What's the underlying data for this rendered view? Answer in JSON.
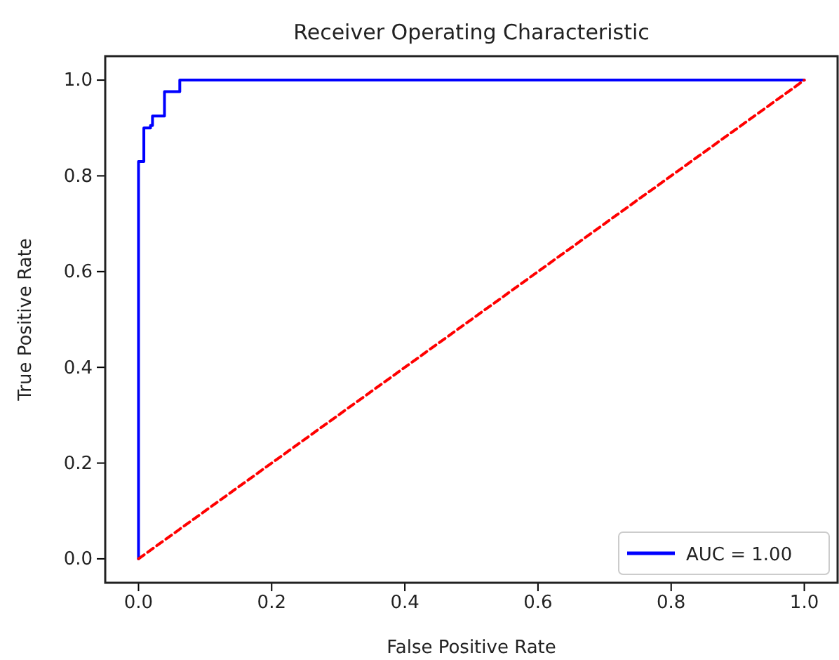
{
  "chart_data": {
    "type": "line",
    "title": "Receiver Operating Characteristic",
    "xlabel": "False Positive Rate",
    "ylabel": "True Positive Rate",
    "xlim": [
      -0.05,
      1.05
    ],
    "ylim": [
      -0.05,
      1.05
    ],
    "xticks": [
      {
        "value": 0,
        "label": "0.0"
      },
      0.2,
      0.4,
      0.6,
      0.8,
      {
        "value": 1,
        "label": "1.0"
      }
    ],
    "yticks": [
      {
        "value": 0,
        "label": "0.0"
      },
      0.2,
      0.4,
      0.6,
      0.8,
      {
        "value": 1,
        "label": "1.0"
      }
    ],
    "legend": "lower right",
    "grid": false,
    "series": [
      {
        "name": "AUC = 1.00",
        "color": "#0000ff",
        "line_style": "solid",
        "x": [
          0,
          0,
          0.008,
          0.008,
          0.018,
          0.018,
          0.021,
          0.021,
          0.039,
          0.039,
          0.062,
          0.062,
          1
        ],
        "values": [
          0,
          0.83,
          0.83,
          0.9,
          0.9,
          0.905,
          0.905,
          0.925,
          0.925,
          0.976,
          0.976,
          1,
          1
        ]
      },
      {
        "color": "#ff0000",
        "line_style": "dashed",
        "x": [
          0,
          1
        ],
        "values": [
          0,
          1
        ]
      }
    ]
  }
}
